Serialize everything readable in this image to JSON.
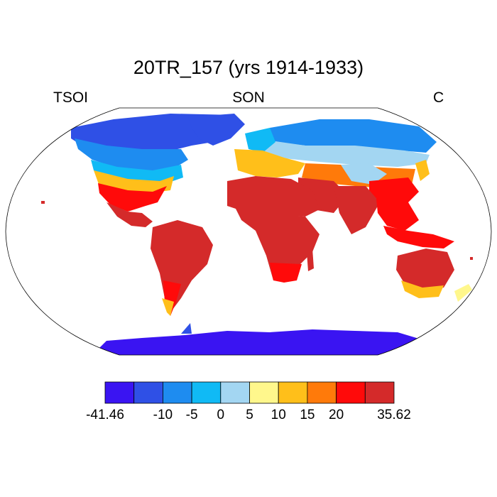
{
  "title": "20TR_157 (yrs 1914-1933)",
  "left_label": "TSOI",
  "center_label": "SON",
  "right_label": "C",
  "colorbar": {
    "colors": [
      "#3a14f2",
      "#2f50e6",
      "#1e8cf0",
      "#10baf5",
      "#a3d6f2",
      "#fff78c",
      "#ffbf1a",
      "#ff7a0a",
      "#ff0a0a",
      "#d42a2a"
    ],
    "tick_labels": [
      "-41.46",
      "-10",
      "-5",
      "0",
      "5",
      "10",
      "15",
      "20",
      "35.62"
    ]
  },
  "map": {
    "projection": "robinson",
    "ocean_color": "#ffffff",
    "outline_color": "#000000"
  }
}
